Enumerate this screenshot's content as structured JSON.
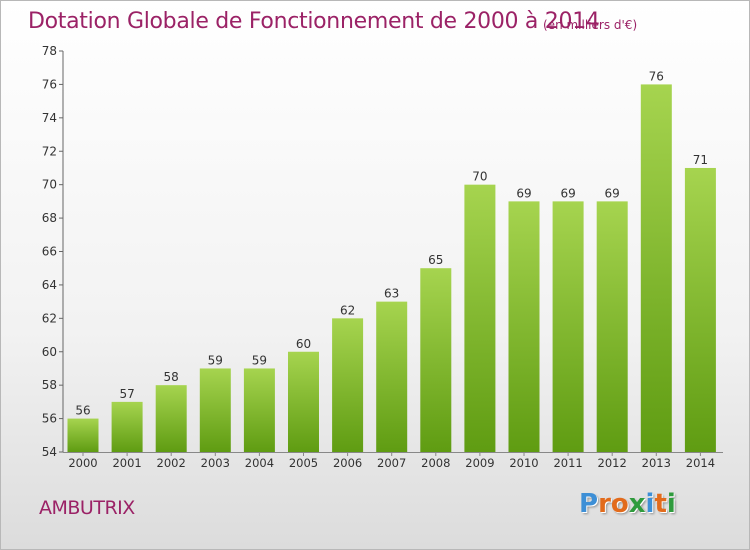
{
  "header": {
    "title": "Dotation Globale de Fonctionnement de 2000 à 2014",
    "subtitle": "(en milliers d'€)"
  },
  "footer": {
    "commune": "AMBUTRIX",
    "logo_letters": [
      "P",
      "r",
      "o",
      "x",
      "i",
      "t",
      "i"
    ],
    "logo_colors": [
      "#3d8fd6",
      "#e26b1c",
      "#e26b1c",
      "#2f9b3d",
      "#3d8fd6",
      "#e26b1c",
      "#2f9b3d"
    ]
  },
  "chart_data": {
    "type": "bar",
    "categories": [
      "2000",
      "2001",
      "2002",
      "2003",
      "2004",
      "2005",
      "2006",
      "2007",
      "2008",
      "2009",
      "2010",
      "2011",
      "2012",
      "2013",
      "2014"
    ],
    "values": [
      56,
      57,
      58,
      59,
      59,
      60,
      62,
      63,
      65,
      70,
      69,
      69,
      69,
      76,
      71
    ],
    "ylim": [
      54,
      78
    ],
    "yticks": [
      54,
      56,
      58,
      60,
      62,
      64,
      66,
      68,
      70,
      72,
      74,
      76,
      78
    ],
    "grid": false,
    "bar_color_top": "#a6d44f",
    "bar_color_bottom": "#5f9c12"
  }
}
